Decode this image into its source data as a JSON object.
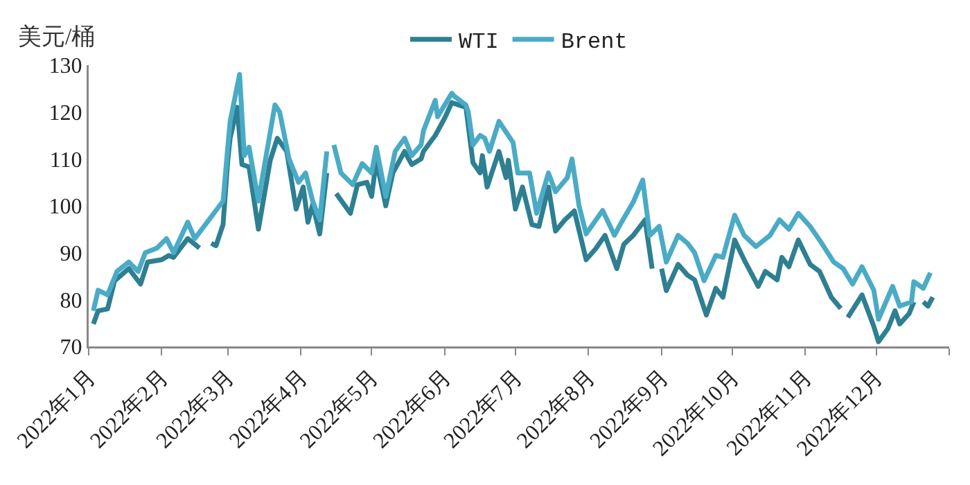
{
  "chart_data": {
    "type": "line",
    "ylabel": "美元/桶",
    "legend": "top",
    "grid": false,
    "line_style": "solid",
    "marker": "none",
    "xlim": [
      "2022-01-01",
      "2023-01-01"
    ],
    "xticks": [
      {
        "value": "2022-01-01",
        "label": "2022年1月"
      },
      {
        "value": "2022-02-01",
        "label": "2022年2月"
      },
      {
        "value": "2022-03-01",
        "label": "2022年3月"
      },
      {
        "value": "2022-04-01",
        "label": "2022年4月"
      },
      {
        "value": "2022-05-01",
        "label": "2022年5月"
      },
      {
        "value": "2022-06-01",
        "label": "2022年6月"
      },
      {
        "value": "2022-07-01",
        "label": "2022年7月"
      },
      {
        "value": "2022-08-01",
        "label": "2022年8月"
      },
      {
        "value": "2022-09-01",
        "label": "2022年9月"
      },
      {
        "value": "2022-10-01",
        "label": "2022年10月"
      },
      {
        "value": "2022-11-01",
        "label": "2022年11月"
      },
      {
        "value": "2022-12-01",
        "label": "2022年12月"
      },
      {
        "value": "2023-01-01",
        "label": null
      }
    ],
    "ylim": [
      70,
      130
    ],
    "yticks": [
      70,
      80,
      90,
      100,
      110,
      120,
      130
    ],
    "series": [
      {
        "name": "WTI",
        "color": "#2e7f92",
        "x": [
          "2022-01-03",
          "2022-01-05",
          "2022-01-09",
          "2022-01-12",
          "2022-01-18",
          "2022-01-23",
          "2022-01-26",
          "2022-02-01",
          "2022-02-04",
          "2022-02-06",
          "2022-02-12",
          "2022-02-17",
          "2022-02-19",
          "2022-02-22",
          "2022-02-24",
          "2022-02-27",
          "2022-03-01",
          "2022-03-02",
          "2022-03-05",
          "2022-03-07",
          "2022-03-10",
          "2022-03-14",
          "2022-03-19",
          "2022-03-22",
          "2022-03-26",
          "2022-03-30",
          "2022-04-02",
          "2022-04-04",
          "2022-04-06",
          "2022-04-09",
          "2022-04-12",
          "2022-04-13",
          "2022-04-16",
          "2022-04-22",
          "2022-04-25",
          "2022-04-29",
          "2022-05-01",
          "2022-05-03",
          "2022-05-07",
          "2022-05-10",
          "2022-05-15",
          "2022-05-18",
          "2022-05-22",
          "2022-05-23",
          "2022-05-28",
          "2022-06-01",
          "2022-06-04",
          "2022-06-10",
          "2022-06-13",
          "2022-06-16",
          "2022-06-17",
          "2022-06-19",
          "2022-06-24",
          "2022-06-27",
          "2022-06-28",
          "2022-07-01",
          "2022-07-04",
          "2022-07-08",
          "2022-07-11",
          "2022-07-15",
          "2022-07-18",
          "2022-07-22",
          "2022-07-26",
          "2022-07-31",
          "2022-08-04",
          "2022-08-08",
          "2022-08-13",
          "2022-08-16",
          "2022-08-20",
          "2022-08-25",
          "2022-08-28",
          "2022-08-30",
          "2022-09-01",
          "2022-09-03",
          "2022-09-08",
          "2022-09-12",
          "2022-09-15",
          "2022-09-20",
          "2022-09-24",
          "2022-09-27",
          "2022-10-02",
          "2022-10-06",
          "2022-10-12",
          "2022-10-15",
          "2022-10-20",
          "2022-10-22",
          "2022-10-25",
          "2022-10-29",
          "2022-11-03",
          "2022-11-07",
          "2022-11-12",
          "2022-11-16",
          "2022-11-17",
          "2022-11-19",
          "2022-11-25",
          "2022-11-30",
          "2022-12-02",
          "2022-12-06",
          "2022-12-09",
          "2022-12-11",
          "2022-12-15",
          "2022-12-17",
          "2022-12-19",
          "2022-12-21",
          "2022-12-23",
          "2022-12-25"
        ],
        "values": [
          74.8,
          77.6,
          78,
          84,
          86.6,
          83.3,
          88,
          88.5,
          89.4,
          89,
          93,
          91,
          null,
          92,
          91.5,
          96,
          109.7,
          114.4,
          121,
          108.8,
          108.3,
          95,
          109.7,
          114.4,
          111.6,
          99.3,
          104,
          96.5,
          100.3,
          94,
          107,
          null,
          102.6,
          98.4,
          104.5,
          105,
          102,
          109.7,
          100,
          107,
          111.6,
          108.8,
          110,
          111.6,
          115,
          118.7,
          122,
          121,
          109.2,
          107,
          110.7,
          104,
          111.6,
          106,
          109.7,
          99.3,
          104,
          96,
          95.6,
          104,
          94.6,
          97,
          98.9,
          88.5,
          90.8,
          93.7,
          86.6,
          91.8,
          93.7,
          97,
          86.6,
          null,
          86.6,
          81.9,
          87.5,
          85.2,
          84.2,
          76.7,
          82.4,
          80.5,
          92.7,
          88.5,
          82.8,
          86,
          84.2,
          89,
          87,
          92.7,
          87.5,
          86,
          80.5,
          78.1,
          null,
          76.2,
          81,
          74.3,
          71,
          73.8,
          77.6,
          74.8,
          77,
          79.5,
          null,
          79.5,
          78.6,
          80.5
        ]
      },
      {
        "name": "Brent",
        "color": "#4aabc6",
        "x": [
          "2022-01-03",
          "2022-01-05",
          "2022-01-09",
          "2022-01-13",
          "2022-01-18",
          "2022-01-22",
          "2022-01-25",
          "2022-01-30",
          "2022-02-03",
          "2022-02-06",
          "2022-02-12",
          "2022-02-15",
          "2022-02-21",
          "2022-02-24",
          "2022-02-27",
          "2022-03-01",
          "2022-03-02",
          "2022-03-06",
          "2022-03-08",
          "2022-03-10",
          "2022-03-14",
          "2022-03-16",
          "2022-03-21",
          "2022-03-23",
          "2022-03-27",
          "2022-03-31",
          "2022-04-03",
          "2022-04-06",
          "2022-04-09",
          "2022-04-12",
          "2022-04-13",
          "2022-04-15",
          "2022-04-18",
          "2022-04-23",
          "2022-04-27",
          "2022-05-01",
          "2022-05-03",
          "2022-05-07",
          "2022-05-11",
          "2022-05-15",
          "2022-05-18",
          "2022-05-22",
          "2022-05-23",
          "2022-05-28",
          "2022-05-29",
          "2022-06-04",
          "2022-06-05",
          "2022-06-10",
          "2022-06-11",
          "2022-06-13",
          "2022-06-16",
          "2022-06-18",
          "2022-06-20",
          "2022-06-24",
          "2022-06-30",
          "2022-07-02",
          "2022-07-07",
          "2022-07-10",
          "2022-07-15",
          "2022-07-18",
          "2022-07-23",
          "2022-07-25",
          "2022-07-28",
          "2022-07-31",
          "2022-08-07",
          "2022-08-12",
          "2022-08-15",
          "2022-08-20",
          "2022-08-24",
          "2022-08-27",
          "2022-08-31",
          "2022-09-03",
          "2022-09-08",
          "2022-09-12",
          "2022-09-15",
          "2022-09-19",
          "2022-09-24",
          "2022-09-27",
          "2022-10-02",
          "2022-10-06",
          "2022-10-11",
          "2022-10-17",
          "2022-10-21",
          "2022-10-25",
          "2022-10-29",
          "2022-11-03",
          "2022-11-07",
          "2022-11-13",
          "2022-11-17",
          "2022-11-21",
          "2022-11-25",
          "2022-11-30",
          "2022-12-02",
          "2022-12-08",
          "2022-12-11",
          "2022-12-16",
          "2022-12-17",
          "2022-12-21",
          "2022-12-24"
        ],
        "values": [
          77.6,
          82,
          81,
          86,
          88,
          86,
          90,
          91,
          93,
          90,
          96.5,
          93,
          97,
          99,
          101,
          112.5,
          118,
          128,
          110.7,
          112.5,
          101,
          107,
          121.5,
          120,
          110,
          105,
          107,
          101,
          97,
          111.6,
          null,
          113,
          107,
          104.5,
          109,
          107,
          112.5,
          102,
          111.6,
          114.4,
          110.7,
          113,
          116,
          122.5,
          119,
          124,
          123.4,
          121.5,
          120,
          113,
          115,
          114.4,
          111.6,
          118,
          113.5,
          107,
          107,
          98.4,
          107,
          103,
          106,
          110,
          100,
          94,
          99,
          93.7,
          96.5,
          100.8,
          105.5,
          93.7,
          95.6,
          88,
          93.7,
          92,
          90,
          84,
          89.4,
          89,
          98,
          93.7,
          91.3,
          93.7,
          97,
          95,
          98.4,
          95.6,
          92.7,
          88,
          86.6,
          83.3,
          87,
          82,
          75.8,
          82.8,
          78.6,
          79.5,
          83.8,
          82.4,
          85.7
        ]
      }
    ]
  }
}
